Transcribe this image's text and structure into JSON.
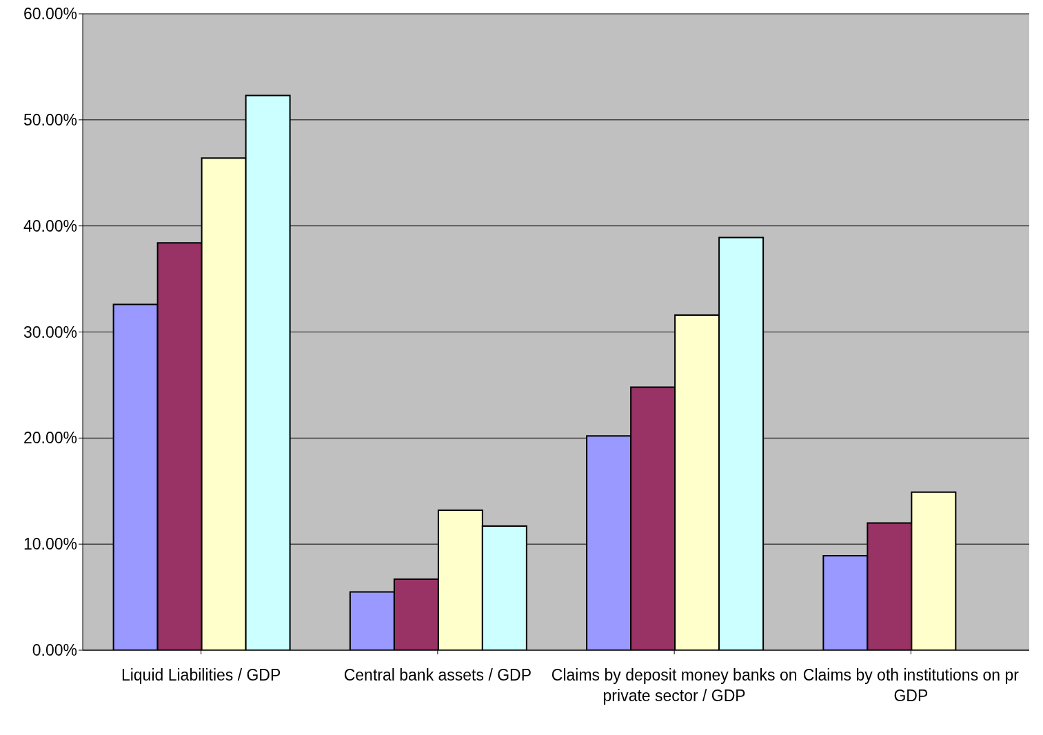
{
  "chart_data": {
    "type": "bar",
    "categories": [
      "Liquid Liabilities / GDP",
      "Central bank assets / GDP",
      "Claims by deposit money banks on private sector / GDP",
      "Claims by oth institutions on pr GDP"
    ],
    "series": [
      {
        "color": "#9999ff",
        "values": [
          32.6,
          5.5,
          20.2,
          8.9
        ]
      },
      {
        "color": "#993366",
        "values": [
          38.4,
          6.7,
          24.8,
          12.0
        ]
      },
      {
        "color": "#ffffcc",
        "values": [
          46.4,
          13.2,
          31.6,
          14.9
        ]
      },
      {
        "color": "#ccffff",
        "values": [
          52.3,
          11.7,
          38.9,
          null
        ]
      }
    ],
    "ylim": [
      0,
      60
    ],
    "yticks": [
      {
        "value": 0,
        "label": "0.00%"
      },
      {
        "value": 10,
        "label": "10.00%"
      },
      {
        "value": 20,
        "label": "20.00%"
      },
      {
        "value": 30,
        "label": "30.00%"
      },
      {
        "value": 40,
        "label": "40.00%"
      },
      {
        "value": 50,
        "label": "50.00%"
      },
      {
        "value": 60,
        "label": "60.00%"
      }
    ],
    "grid": "y",
    "legend": false
  }
}
